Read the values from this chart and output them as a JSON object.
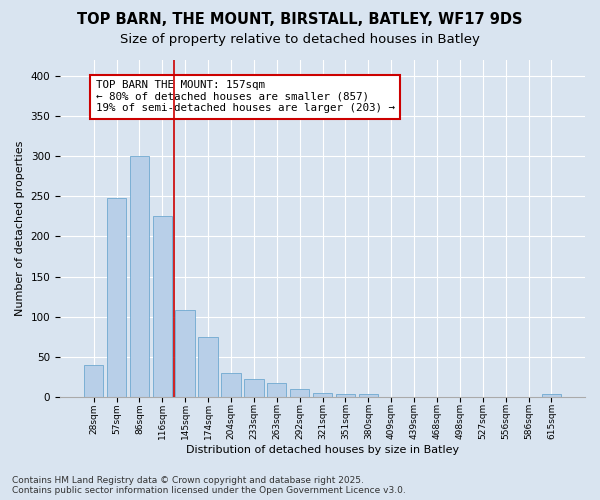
{
  "title1": "TOP BARN, THE MOUNT, BIRSTALL, BATLEY, WF17 9DS",
  "title2": "Size of property relative to detached houses in Batley",
  "xlabel": "Distribution of detached houses by size in Batley",
  "ylabel": "Number of detached properties",
  "categories": [
    "28sqm",
    "57sqm",
    "86sqm",
    "116sqm",
    "145sqm",
    "174sqm",
    "204sqm",
    "233sqm",
    "263sqm",
    "292sqm",
    "321sqm",
    "351sqm",
    "380sqm",
    "409sqm",
    "439sqm",
    "468sqm",
    "498sqm",
    "527sqm",
    "556sqm",
    "586sqm",
    "615sqm"
  ],
  "values": [
    40,
    248,
    300,
    225,
    108,
    75,
    30,
    22,
    17,
    10,
    5,
    3,
    3,
    0,
    0,
    0,
    0,
    0,
    0,
    0,
    3
  ],
  "bar_color": "#b8cfe8",
  "bar_edge_color": "#6fa8d0",
  "vline_x": 3.5,
  "vline_color": "#cc0000",
  "annotation_text": "TOP BARN THE MOUNT: 157sqm\n← 80% of detached houses are smaller (857)\n19% of semi-detached houses are larger (203) →",
  "annotation_box_color": "#ffffff",
  "annotation_box_edge": "#cc0000",
  "bg_color": "#d9e4f0",
  "plot_bg_color": "#d9e4f0",
  "footer1": "Contains HM Land Registry data © Crown copyright and database right 2025.",
  "footer2": "Contains public sector information licensed under the Open Government Licence v3.0.",
  "ylim": [
    0,
    420
  ],
  "yticks": [
    0,
    50,
    100,
    150,
    200,
    250,
    300,
    350,
    400
  ],
  "title1_fontsize": 10.5,
  "title2_fontsize": 9.5,
  "annotation_fontsize": 7.8,
  "footer_fontsize": 6.5,
  "xlabel_fontsize": 8,
  "ylabel_fontsize": 8
}
